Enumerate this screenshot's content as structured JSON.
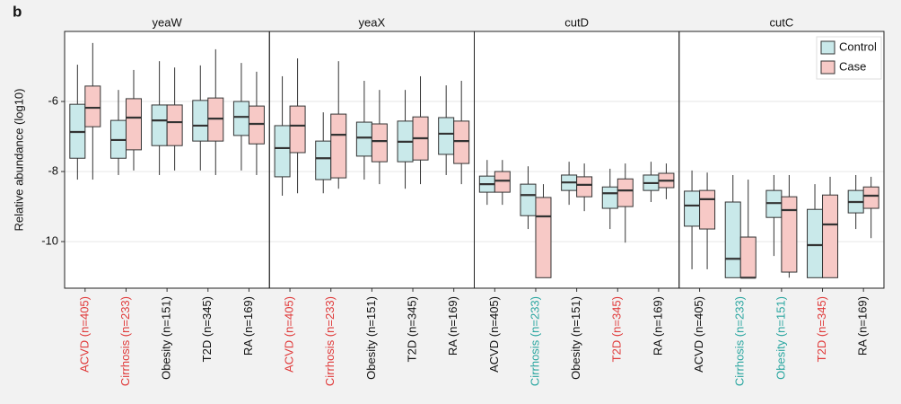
{
  "chart_data": {
    "type": "box",
    "panel_label": "b",
    "ylabel": "Relative abundance (log10)",
    "ylim": [
      -11.33,
      -4.0
    ],
    "yticks": [
      -10,
      -8,
      -6
    ],
    "grid": true,
    "legend": "top-right",
    "series": [
      {
        "name": "Control",
        "color": "#c9e9ea"
      },
      {
        "name": "Case",
        "color": "#f7c9c6"
      }
    ],
    "panels": [
      {
        "title": "yeaW",
        "categories": [
          "ACVD (n=405)",
          "Cirrhosis (n=233)",
          "Obesity (n=151)",
          "T2D (n=345)",
          "RA (n=169)"
        ],
        "category_colors": [
          "#e03a3a",
          "#e03a3a",
          "#111111",
          "#111111",
          "#111111"
        ],
        "series": [
          {
            "values": [
              {
                "low": -8.23,
                "q1": -7.62,
                "median": -6.87,
                "q3": -6.08,
                "high": -4.95
              },
              {
                "low": -8.1,
                "q1": -7.62,
                "median": -7.1,
                "q3": -6.54,
                "high": -5.67
              },
              {
                "low": -8.1,
                "q1": -7.26,
                "median": -6.54,
                "q3": -6.1,
                "high": -4.85
              },
              {
                "low": -7.97,
                "q1": -7.13,
                "median": -6.69,
                "q3": -5.97,
                "high": -4.97
              },
              {
                "low": -7.97,
                "q1": -6.97,
                "median": -6.44,
                "q3": -6.0,
                "high": -4.9
              }
            ]
          },
          {
            "values": [
              {
                "low": -8.23,
                "q1": -6.72,
                "median": -6.18,
                "q3": -5.56,
                "high": -4.33
              },
              {
                "low": -7.97,
                "q1": -7.38,
                "median": -6.46,
                "q3": -5.92,
                "high": -5.1
              },
              {
                "low": -7.97,
                "q1": -7.26,
                "median": -6.59,
                "q3": -6.1,
                "high": -5.03
              },
              {
                "low": -8.1,
                "q1": -7.13,
                "median": -6.49,
                "q3": -5.9,
                "high": -4.51
              },
              {
                "low": -8.1,
                "q1": -7.21,
                "median": -6.64,
                "q3": -6.13,
                "high": -5.15
              }
            ]
          }
        ]
      },
      {
        "title": "yeaX",
        "categories": [
          "ACVD (n=405)",
          "Cirrhosis (n=233)",
          "Obesity (n=151)",
          "T2D (n=345)",
          "RA (n=169)"
        ],
        "category_colors": [
          "#e03a3a",
          "#e03a3a",
          "#111111",
          "#111111",
          "#111111"
        ],
        "series": [
          {
            "values": [
              {
                "low": -8.69,
                "q1": -8.15,
                "median": -7.33,
                "q3": -6.69,
                "high": -5.28
              },
              {
                "low": -8.62,
                "q1": -8.23,
                "median": -7.62,
                "q3": -7.13,
                "high": -6.31
              },
              {
                "low": -8.23,
                "q1": -7.56,
                "median": -7.03,
                "q3": -6.59,
                "high": -5.41
              },
              {
                "low": -8.49,
                "q1": -7.72,
                "median": -7.15,
                "q3": -6.56,
                "high": -5.67
              },
              {
                "low": -8.1,
                "q1": -7.51,
                "median": -6.92,
                "q3": -6.46,
                "high": -5.54
              }
            ]
          },
          {
            "values": [
              {
                "low": -8.62,
                "q1": -7.46,
                "median": -6.69,
                "q3": -6.13,
                "high": -4.77
              },
              {
                "low": -8.49,
                "q1": -8.18,
                "median": -6.95,
                "q3": -6.36,
                "high": -4.85
              },
              {
                "low": -8.36,
                "q1": -7.72,
                "median": -7.13,
                "q3": -6.64,
                "high": -5.67
              },
              {
                "low": -8.36,
                "q1": -7.67,
                "median": -7.05,
                "q3": -6.44,
                "high": -5.28
              },
              {
                "low": -8.36,
                "q1": -7.77,
                "median": -7.13,
                "q3": -6.56,
                "high": -5.41
              }
            ]
          }
        ]
      },
      {
        "title": "cutD",
        "categories": [
          "ACVD (n=405)",
          "Cirrhosis (n=233)",
          "Obesity (n=151)",
          "T2D (n=345)",
          "RA (n=169)"
        ],
        "category_colors": [
          "#111111",
          "#2aa6a0",
          "#111111",
          "#e03a3a",
          "#111111"
        ],
        "series": [
          {
            "values": [
              {
                "low": -8.95,
                "q1": -8.59,
                "median": -8.36,
                "q3": -8.13,
                "high": -7.67
              },
              {
                "low": -9.64,
                "q1": -9.26,
                "median": -8.67,
                "q3": -8.36,
                "high": -7.85
              },
              {
                "low": -8.95,
                "q1": -8.54,
                "median": -8.31,
                "q3": -8.1,
                "high": -7.72
              },
              {
                "low": -9.64,
                "q1": -9.05,
                "median": -8.62,
                "q3": -8.44,
                "high": -7.92
              },
              {
                "low": -8.87,
                "q1": -8.54,
                "median": -8.33,
                "q3": -8.1,
                "high": -7.72
              }
            ]
          },
          {
            "values": [
              {
                "low": -8.95,
                "q1": -8.59,
                "median": -8.26,
                "q3": -8.0,
                "high": -7.67
              },
              {
                "low": -11.03,
                "q1": -11.03,
                "median": -9.28,
                "q3": -8.74,
                "high": -8.36
              },
              {
                "low": -9.13,
                "q1": -8.72,
                "median": -8.38,
                "q3": -8.15,
                "high": -7.77
              },
              {
                "low": -10.03,
                "q1": -9.0,
                "median": -8.54,
                "q3": -8.21,
                "high": -7.77
              },
              {
                "low": -8.79,
                "q1": -8.46,
                "median": -8.26,
                "q3": -8.05,
                "high": -7.77
              }
            ]
          }
        ]
      },
      {
        "title": "cutC",
        "categories": [
          "ACVD (n=405)",
          "Cirrhosis (n=233)",
          "Obesity (n=151)",
          "T2D (n=345)",
          "RA (n=169)"
        ],
        "category_colors": [
          "#111111",
          "#2aa6a0",
          "#2aa6a0",
          "#e03a3a",
          "#111111"
        ],
        "series": [
          {
            "values": [
              {
                "low": -10.79,
                "q1": -9.56,
                "median": -8.97,
                "q3": -8.56,
                "high": -7.97
              },
              {
                "low": -11.03,
                "q1": -11.03,
                "median": -10.49,
                "q3": -8.87,
                "high": -8.1
              },
              {
                "low": -10.41,
                "q1": -9.31,
                "median": -8.9,
                "q3": -8.54,
                "high": -8.1
              },
              {
                "low": -11.03,
                "q1": -11.03,
                "median": -10.1,
                "q3": -9.08,
                "high": -8.36
              },
              {
                "low": -9.64,
                "q1": -9.18,
                "median": -8.87,
                "q3": -8.54,
                "high": -8.1
              }
            ]
          },
          {
            "values": [
              {
                "low": -10.79,
                "q1": -9.64,
                "median": -8.79,
                "q3": -8.54,
                "high": -8.03
              },
              {
                "low": -11.03,
                "q1": -11.03,
                "median": -11.03,
                "q3": -9.87,
                "high": -8.23
              },
              {
                "low": -11.03,
                "q1": -10.87,
                "median": -9.1,
                "q3": -8.72,
                "high": -8.1
              },
              {
                "low": -11.03,
                "q1": -11.03,
                "median": -9.51,
                "q3": -8.67,
                "high": -8.15
              },
              {
                "low": -9.9,
                "q1": -9.05,
                "median": -8.69,
                "q3": -8.44,
                "high": -8.15
              }
            ]
          }
        ]
      }
    ]
  }
}
